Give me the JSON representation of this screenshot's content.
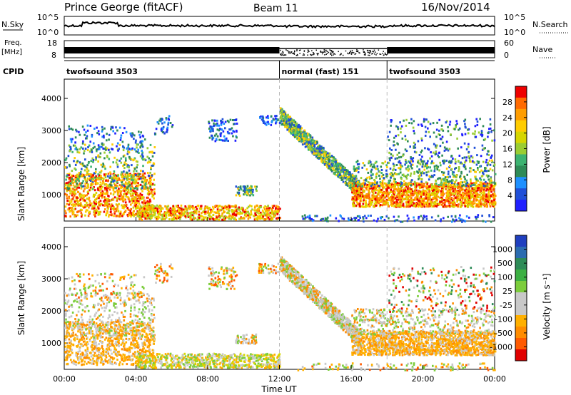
{
  "header": {
    "station": "Prince George (fitACF)",
    "beam": "Beam 11",
    "date": "16/Nov/2014"
  },
  "top_panels": {
    "nsky_label": "N.Sky",
    "nsearch_label": "N.Search",
    "nsky_ticks": [
      "10^5",
      "10^0"
    ],
    "nsearch_ticks": [
      "10^5",
      "10^0"
    ],
    "freq_label_1": "Freq.",
    "freq_label_2": "[MHz]",
    "freq_ticks": [
      "18",
      "8"
    ],
    "nave_label": "Nave",
    "nave_ticks": [
      "60",
      "0"
    ],
    "cpid_label": "CPID",
    "cpid_segments": [
      {
        "label": "twofsound 3503",
        "start_hour": 0,
        "end_hour": 12
      },
      {
        "label": "normal (fast) 151",
        "start_hour": 12,
        "end_hour": 18
      },
      {
        "label": "twofsound 3503",
        "start_hour": 18,
        "end_hour": 24
      }
    ]
  },
  "power_colorbar": {
    "label": "Power [dB]",
    "ticks": [
      "28",
      "24",
      "20",
      "16",
      "12",
      "8",
      "4"
    ],
    "colors": [
      "#ee0000",
      "#ff6a00",
      "#ff9d00",
      "#ffcc00",
      "#d6d600",
      "#9acd32",
      "#3cb371",
      "#2e8b57",
      "#1e90ff",
      "#1f4fd8",
      "#2020ff"
    ]
  },
  "velocity_colorbar": {
    "label": "Velocity [m s⁻¹]",
    "ticks": [
      "1000",
      "500",
      "100",
      "25",
      "-25",
      "-100",
      "-500",
      "-1000"
    ],
    "colors": [
      "#1f3fbf",
      "#2b6cb0",
      "#2e8b57",
      "#3cb043",
      "#7ccd3c",
      "#c8c8c8",
      "#c8c8c8",
      "#ffb000",
      "#ff8c00",
      "#ff5a00",
      "#e00000"
    ]
  },
  "x_axis": {
    "title": "Time UT",
    "ticks": [
      "00:00",
      "04:00",
      "08:00",
      "12:00",
      "16:00",
      "20:00",
      "00:00"
    ]
  },
  "chart_data": [
    {
      "type": "heatmap",
      "panel": "power",
      "xlabel": "Time UT",
      "ylabel": "Slant Range [km]",
      "xlim": [
        0,
        24
      ],
      "ylim": [
        180,
        4600
      ],
      "y_ticks": [
        "4000",
        "3000",
        "2000",
        "1000"
      ],
      "colorbar": "Power [dB]"
    },
    {
      "type": "heatmap",
      "panel": "velocity",
      "xlabel": "Time UT",
      "ylabel": "Slant Range [km]",
      "xlim": [
        0,
        24
      ],
      "ylim": [
        180,
        4600
      ],
      "y_ticks": [
        "4000",
        "3000",
        "2000",
        "1000"
      ],
      "colorbar": "Velocity [m s⁻¹]"
    }
  ]
}
